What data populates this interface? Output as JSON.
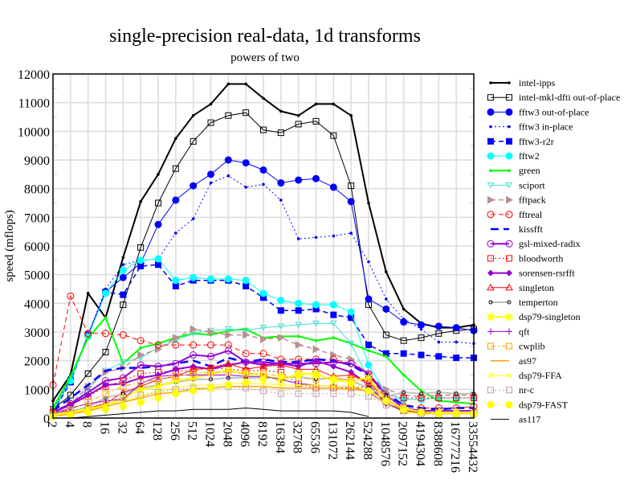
{
  "chart_data": {
    "type": "line",
    "title": "single-precision real-data, 1d transforms",
    "subtitle": "powers of two",
    "xlabel": "",
    "ylabel": "speed (mflops)",
    "ylim": [
      0,
      12000
    ],
    "yticks": [
      0,
      1000,
      2000,
      3000,
      4000,
      5000,
      6000,
      7000,
      8000,
      9000,
      10000,
      11000,
      12000
    ],
    "x": [
      "2",
      "4",
      "8",
      "16",
      "32",
      "64",
      "128",
      "256",
      "512",
      "1024",
      "2048",
      "4096",
      "8192",
      "16384",
      "32768",
      "65536",
      "131072",
      "262144",
      "524288",
      "1048576",
      "2097152",
      "4194304",
      "8388608",
      "16777216",
      "33554432"
    ],
    "grid": true,
    "legend_position": "right",
    "series": [
      {
        "name": "intel-ipps",
        "color": "#000000",
        "width": 2,
        "dash": "",
        "marker": "dot",
        "values": [
          600,
          1500,
          4350,
          3500,
          5600,
          7550,
          8500,
          9750,
          10550,
          10950,
          11650,
          11650,
          11150,
          10700,
          10550,
          10950,
          10950,
          10550,
          7500,
          5100,
          3800,
          3300,
          3150,
          3150,
          3250
        ]
      },
      {
        "name": "intel-mkl-dfti out-of-place",
        "color": "#000000",
        "width": 1,
        "dash": "",
        "marker": "square-open",
        "values": [
          300,
          800,
          1550,
          2300,
          3950,
          5950,
          7500,
          8700,
          9650,
          10300,
          10550,
          10650,
          10050,
          9950,
          10250,
          10350,
          9850,
          8100,
          3950,
          2900,
          2700,
          2800,
          2950,
          3050,
          3100
        ]
      },
      {
        "name": "fftw3 out-of-place",
        "color": "#0000ff",
        "width": 1,
        "dash": "",
        "marker": "circle-filled",
        "values": [
          200,
          1350,
          2900,
          4400,
          4900,
          5400,
          6750,
          7600,
          8100,
          8500,
          9000,
          8900,
          8650,
          8200,
          8300,
          8350,
          8050,
          7550,
          4150,
          3800,
          3350,
          3250,
          3200,
          3150,
          3050
        ]
      },
      {
        "name": "fftw3 in-place",
        "color": "#0000ff",
        "width": 1,
        "dash": "2,3",
        "marker": "dot",
        "values": [
          250,
          1400,
          2900,
          4500,
          5350,
          5500,
          5550,
          6450,
          6950,
          8200,
          8450,
          8050,
          8150,
          7600,
          6250,
          6300,
          6350,
          6450,
          5450,
          4150,
          3450,
          3100,
          2650,
          2650,
          2600
        ]
      },
      {
        "name": "fftw3-r2r",
        "color": "#0000ff",
        "width": 1.5,
        "dash": "6,4",
        "marker": "square-filled",
        "values": [
          200,
          1250,
          2900,
          4400,
          4300,
          5300,
          5350,
          4600,
          4800,
          4800,
          4800,
          4600,
          4200,
          3750,
          3750,
          3800,
          3600,
          3500,
          2550,
          2250,
          2250,
          2200,
          2150,
          2100,
          2100
        ]
      },
      {
        "name": "fftw2",
        "color": "#00ffff",
        "width": 1,
        "dash": "",
        "marker": "circle-filled",
        "values": [
          250,
          1300,
          2850,
          4350,
          5150,
          5500,
          5550,
          4800,
          4900,
          4850,
          4850,
          4800,
          4350,
          4100,
          4000,
          3950,
          3950,
          3700,
          1850,
          850,
          650,
          650,
          700,
          700,
          700
        ]
      },
      {
        "name": "green",
        "color": "#00ff00",
        "width": 2,
        "dash": "",
        "marker": "dot",
        "values": [
          350,
          1450,
          2800,
          3500,
          1900,
          2450,
          2600,
          2800,
          2950,
          2900,
          3050,
          3100,
          2800,
          2850,
          2850,
          2700,
          2800,
          2600,
          2350,
          2150,
          1500,
          950,
          600,
          550,
          500
        ]
      },
      {
        "name": "sciport",
        "color": "#40e0d0",
        "width": 1,
        "dash": "",
        "marker": "triangle-down",
        "values": [
          200,
          450,
          1000,
          1650,
          1950,
          2100,
          2450,
          2700,
          2950,
          3050,
          3100,
          3050,
          3150,
          3200,
          3250,
          3300,
          3300,
          2600,
          1350,
          700,
          650,
          650,
          700,
          700,
          700
        ]
      },
      {
        "name": "fftpack",
        "color": "#bc8f8f",
        "width": 1.5,
        "dash": "6,4",
        "marker": "triangle-right",
        "values": [
          250,
          500,
          1100,
          1600,
          1750,
          2200,
          2400,
          2800,
          3100,
          3000,
          2900,
          2900,
          2750,
          2800,
          2550,
          2400,
          2200,
          2050,
          1500,
          1000,
          800,
          750,
          800,
          800,
          800
        ]
      },
      {
        "name": "fftreal",
        "color": "#ff0000",
        "width": 1,
        "dash": "6,4",
        "marker": "circle-open",
        "values": [
          1150,
          4250,
          2950,
          2950,
          2900,
          2700,
          2550,
          2550,
          2550,
          2550,
          2550,
          2250,
          2250,
          2050,
          2050,
          2050,
          2050,
          1900,
          1500,
          700,
          400,
          350,
          350,
          350,
          400
        ]
      },
      {
        "name": "kissfft",
        "color": "#0000ff",
        "width": 2.5,
        "dash": "10,6",
        "marker": "none",
        "values": [
          250,
          700,
          1150,
          1650,
          1750,
          1750,
          1800,
          1900,
          2000,
          1800,
          2100,
          1950,
          2050,
          1950,
          1950,
          2050,
          2000,
          1850,
          1500,
          850,
          450,
          350,
          300,
          350,
          350
        ]
      },
      {
        "name": "gsl-mixed-radix",
        "color": "#9400d3",
        "width": 2,
        "dash": "",
        "marker": "circle-open",
        "values": [
          200,
          500,
          900,
          1300,
          1400,
          1850,
          1800,
          1900,
          2200,
          2150,
          2350,
          1950,
          1950,
          1900,
          1900,
          1900,
          1950,
          1900,
          1550,
          800,
          350,
          250,
          250,
          250,
          250
        ]
      },
      {
        "name": "bloodworth",
        "color": "#ff0000",
        "width": 1,
        "dash": "2,3",
        "marker": "square-open",
        "values": [
          200,
          450,
          750,
          1100,
          1300,
          1550,
          1600,
          1650,
          1650,
          1750,
          1700,
          1650,
          1650,
          1600,
          1200,
          1050,
          1050,
          1050,
          1100,
          800,
          700,
          700,
          700,
          700,
          700
        ]
      },
      {
        "name": "sorensen-rsrfft",
        "color": "#9400d3",
        "width": 2,
        "dash": "",
        "marker": "diamond-filled",
        "values": [
          200,
          450,
          800,
          1150,
          1200,
          1400,
          1500,
          1700,
          1800,
          1700,
          1850,
          1950,
          1850,
          1900,
          1800,
          2000,
          1800,
          1600,
          1150,
          500,
          250,
          200,
          200,
          200,
          200
        ]
      },
      {
        "name": "singleton",
        "color": "#ff0000",
        "width": 1,
        "dash": "",
        "marker": "triangle-open",
        "values": [
          200,
          250,
          350,
          500,
          900,
          1100,
          1350,
          1450,
          1700,
          1750,
          1900,
          1700,
          1800,
          1850,
          1700,
          1700,
          1450,
          1500,
          1250,
          650,
          250,
          200,
          200,
          200,
          200
        ]
      },
      {
        "name": "temperton",
        "color": "#c0c0c0",
        "width": 2,
        "dash": "",
        "marker": "dot-black",
        "values": [
          150,
          200,
          400,
          700,
          850,
          1050,
          1150,
          1250,
          1350,
          1350,
          1400,
          1400,
          1400,
          1400,
          1450,
          1350,
          1400,
          1300,
          1050,
          750,
          900,
          850,
          900,
          850,
          850
        ]
      },
      {
        "name": "dsp79-singleton",
        "color": "#ffff00",
        "width": 2,
        "dash": "",
        "marker": "asterisk",
        "values": [
          100,
          200,
          300,
          450,
          700,
          1000,
          1100,
          1300,
          1400,
          1550,
          1650,
          1550,
          1500,
          1300,
          1550,
          1550,
          1300,
          1300,
          1400,
          600,
          350,
          200,
          200,
          200,
          200
        ]
      },
      {
        "name": "qft",
        "color": "#9400d3",
        "width": 1,
        "dash": "",
        "marker": "plus",
        "values": [
          150,
          350,
          500,
          600,
          650,
          1200,
          1450,
          1500,
          1500,
          1500,
          1500,
          1450,
          1450,
          1350,
          1200,
          1150,
          1100,
          1100,
          900,
          500,
          250,
          200,
          150,
          150,
          150
        ]
      },
      {
        "name": "cwplib",
        "color": "#ffa500",
        "width": 1,
        "dash": "6,3,2,3",
        "marker": "square-open",
        "values": [
          150,
          300,
          550,
          850,
          1100,
          1250,
          1350,
          1450,
          1550,
          1600,
          1600,
          1550,
          1550,
          1450,
          1400,
          1350,
          1400,
          1350,
          1250,
          800,
          300,
          200,
          150,
          150,
          150
        ]
      },
      {
        "name": "as97",
        "color": "#ffa500",
        "width": 1.5,
        "dash": "",
        "marker": "none",
        "values": [
          50,
          150,
          250,
          400,
          550,
          700,
          850,
          900,
          1000,
          1050,
          1100,
          1100,
          1100,
          1050,
          1050,
          1050,
          1050,
          1000,
          950,
          650,
          250,
          150,
          150,
          150,
          150
        ]
      },
      {
        "name": "dsp79-FFA",
        "color": "#ffff00",
        "width": 1,
        "dash": "",
        "marker": "cross",
        "values": [
          100,
          200,
          350,
          450,
          600,
          750,
          950,
          1050,
          1150,
          1150,
          1200,
          1200,
          1200,
          1150,
          1150,
          1150,
          1100,
          1100,
          950,
          500,
          200,
          150,
          150,
          150,
          150
        ]
      },
      {
        "name": "nr-c",
        "color": "#c8a0a0",
        "width": 1,
        "dash": "2,3",
        "marker": "square-open",
        "values": [
          100,
          250,
          400,
          600,
          700,
          800,
          900,
          1000,
          1050,
          1050,
          1100,
          1050,
          950,
          850,
          850,
          850,
          850,
          850,
          750,
          450,
          250,
          150,
          150,
          150,
          150
        ]
      },
      {
        "name": "dsp79-FAST",
        "color": "#ffff00",
        "width": 1,
        "dash": "2,3",
        "marker": "circle-filled",
        "values": [
          50,
          100,
          200,
          300,
          400,
          550,
          700,
          850,
          950,
          1050,
          1150,
          1250,
          1350,
          1450,
          1500,
          1500,
          1350,
          1200,
          950,
          600,
          300,
          200,
          150,
          150,
          150
        ]
      },
      {
        "name": "as117",
        "color": "#000000",
        "width": 1,
        "dash": "",
        "marker": "none",
        "values": [
          0,
          0,
          50,
          100,
          150,
          200,
          250,
          250,
          300,
          300,
          300,
          350,
          300,
          250,
          250,
          250,
          250,
          200,
          50,
          null,
          null,
          null,
          null,
          null,
          null
        ]
      }
    ]
  }
}
